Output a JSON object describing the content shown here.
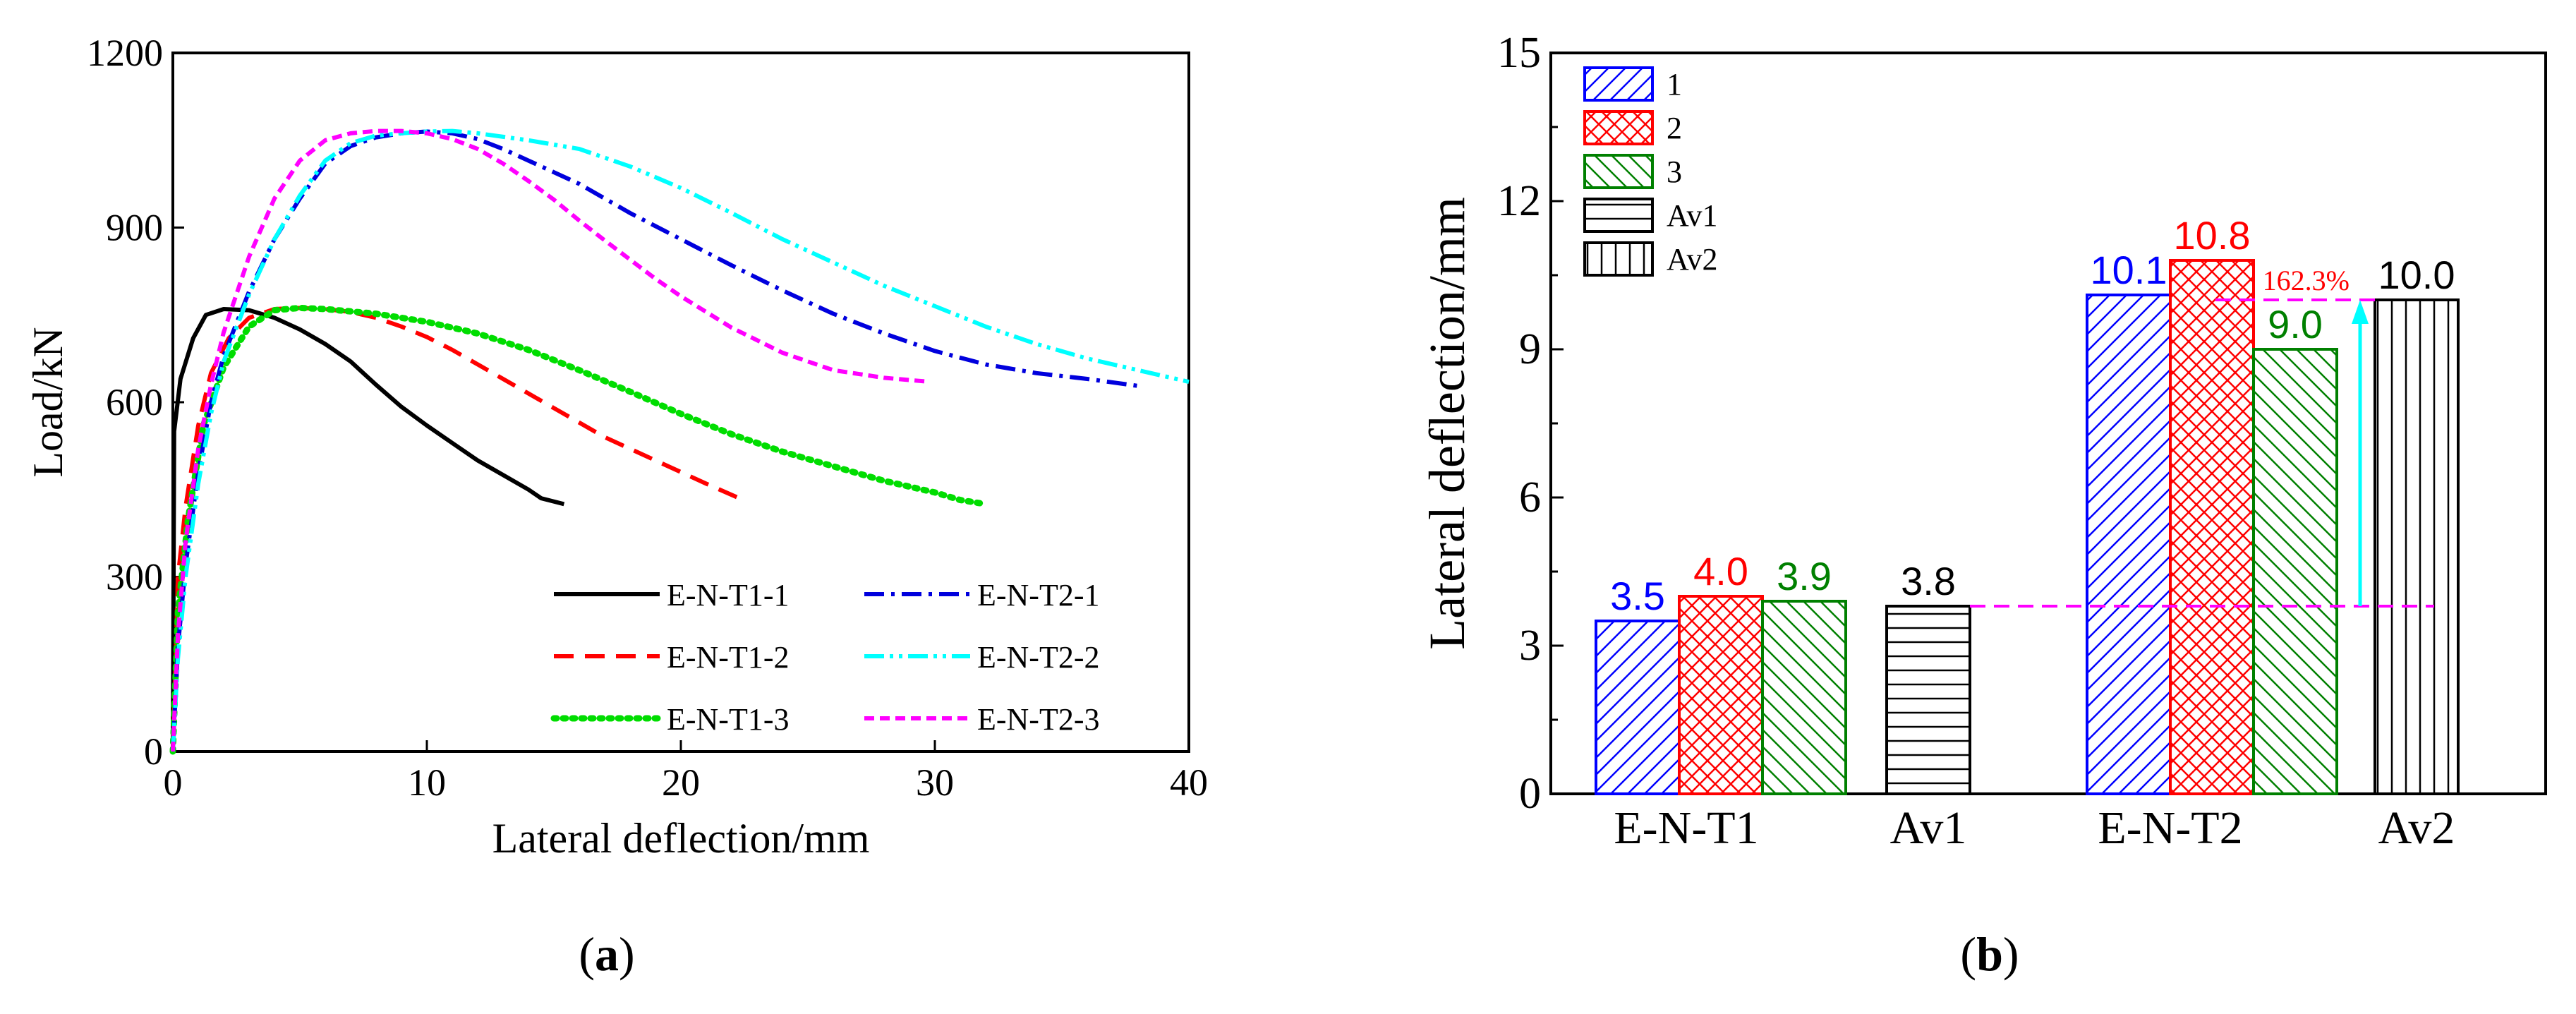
{
  "colors": {
    "black": "#000000",
    "red": "#ff0000",
    "blue": "#0000ff",
    "green": "#008000",
    "cyan": "#00ffff",
    "magenta": "#ff00ff",
    "dash_blue": "#0000dd",
    "dot_green": "#00dd00"
  },
  "panels": {
    "a_label": "a",
    "b_label": "b"
  },
  "chart_data": [
    {
      "type": "line",
      "xlabel": "Lateral deflection/mm",
      "ylabel": "Load/kN",
      "xlim": [
        0,
        40
      ],
      "ylim": [
        0,
        1200
      ],
      "xticks": [
        0,
        10,
        20,
        30,
        40
      ],
      "yticks": [
        0,
        300,
        600,
        900,
        1200
      ],
      "grid": false,
      "legend_position": "bottom-right",
      "series": [
        {
          "name": "E-N-T1-1",
          "color": "#000000",
          "style": "solid",
          "points": [
            [
              0,
              0
            ],
            [
              0.05,
              550
            ],
            [
              0.3,
              640
            ],
            [
              0.8,
              710
            ],
            [
              1.3,
              750
            ],
            [
              2,
              760
            ],
            [
              3,
              758
            ],
            [
              4,
              745
            ],
            [
              5,
              725
            ],
            [
              6,
              700
            ],
            [
              7,
              670
            ],
            [
              8,
              630
            ],
            [
              9,
              592
            ],
            [
              10,
              560
            ],
            [
              11,
              530
            ],
            [
              12,
              500
            ],
            [
              13,
              475
            ],
            [
              14,
              450
            ],
            [
              14.5,
              435
            ],
            [
              15.4,
              425
            ]
          ]
        },
        {
          "name": "E-N-T1-2",
          "color": "#ff0000",
          "style": "dashed",
          "points": [
            [
              0,
              0
            ],
            [
              0.2,
              300
            ],
            [
              0.5,
              420
            ],
            [
              1,
              560
            ],
            [
              1.5,
              650
            ],
            [
              2.2,
              710
            ],
            [
              3,
              745
            ],
            [
              4,
              760
            ],
            [
              5,
              762
            ],
            [
              6,
              760
            ],
            [
              7,
              755
            ],
            [
              8,
              745
            ],
            [
              9,
              730
            ],
            [
              10,
              712
            ],
            [
              11,
              690
            ],
            [
              12,
              665
            ],
            [
              13,
              640
            ],
            [
              14,
              615
            ],
            [
              15,
              590
            ],
            [
              16,
              565
            ],
            [
              17,
              540
            ],
            [
              18,
              520
            ],
            [
              19,
              500
            ],
            [
              20,
              480
            ],
            [
              21,
              460
            ],
            [
              22.3,
              435
            ]
          ]
        },
        {
          "name": "E-N-T1-3",
          "color": "#00dd00",
          "style": "dotted",
          "points": [
            [
              0,
              0
            ],
            [
              0.2,
              240
            ],
            [
              0.6,
              400
            ],
            [
              1.2,
              560
            ],
            [
              2,
              660
            ],
            [
              3,
              730
            ],
            [
              4,
              758
            ],
            [
              5,
              762
            ],
            [
              6,
              760
            ],
            [
              8,
              752
            ],
            [
              10,
              738
            ],
            [
              12,
              718
            ],
            [
              14,
              690
            ],
            [
              16,
              655
            ],
            [
              18,
              618
            ],
            [
              20,
              580
            ],
            [
              22,
              545
            ],
            [
              24,
              515
            ],
            [
              26,
              490
            ],
            [
              28,
              465
            ],
            [
              30,
              445
            ],
            [
              31,
              432
            ],
            [
              32,
              425
            ]
          ]
        },
        {
          "name": "E-N-T2-1",
          "color": "#0000dd",
          "style": "dash-dot",
          "points": [
            [
              0,
              0
            ],
            [
              0.2,
              180
            ],
            [
              0.5,
              320
            ],
            [
              1,
              480
            ],
            [
              1.5,
              600
            ],
            [
              2,
              680
            ],
            [
              3,
              790
            ],
            [
              4,
              880
            ],
            [
              5,
              950
            ],
            [
              6,
              1010
            ],
            [
              7,
              1040
            ],
            [
              8,
              1055
            ],
            [
              9,
              1062
            ],
            [
              10,
              1065
            ],
            [
              11,
              1062
            ],
            [
              12,
              1052
            ],
            [
              13,
              1035
            ],
            [
              14,
              1015
            ],
            [
              16,
              975
            ],
            [
              18,
              925
            ],
            [
              20,
              880
            ],
            [
              22,
              835
            ],
            [
              24,
              792
            ],
            [
              26,
              752
            ],
            [
              28,
              718
            ],
            [
              30,
              688
            ],
            [
              32,
              665
            ],
            [
              34,
              650
            ],
            [
              36,
              640
            ],
            [
              38,
              628
            ]
          ]
        },
        {
          "name": "E-N-T2-2",
          "color": "#00ffff",
          "style": "dash-dot-dot",
          "points": [
            [
              0,
              0
            ],
            [
              0.2,
              160
            ],
            [
              0.5,
              300
            ],
            [
              1,
              460
            ],
            [
              1.5,
              580
            ],
            [
              2,
              670
            ],
            [
              3,
              785
            ],
            [
              4,
              880
            ],
            [
              5,
              955
            ],
            [
              6,
              1015
            ],
            [
              7,
              1045
            ],
            [
              8,
              1058
            ],
            [
              9,
              1062
            ],
            [
              10,
              1065
            ],
            [
              11,
              1066
            ],
            [
              12,
              1062
            ],
            [
              14,
              1050
            ],
            [
              16,
              1035
            ],
            [
              18,
              1005
            ],
            [
              20,
              968
            ],
            [
              22,
              925
            ],
            [
              24,
              880
            ],
            [
              26,
              840
            ],
            [
              28,
              800
            ],
            [
              30,
              765
            ],
            [
              32,
              730
            ],
            [
              34,
              700
            ],
            [
              36,
              675
            ],
            [
              38,
              655
            ],
            [
              40,
              635
            ]
          ]
        },
        {
          "name": "E-N-T2-3",
          "color": "#ff00ff",
          "style": "short-dashed",
          "points": [
            [
              0,
              0
            ],
            [
              0.2,
              200
            ],
            [
              0.5,
              360
            ],
            [
              1,
              520
            ],
            [
              1.5,
              630
            ],
            [
              2,
              720
            ],
            [
              3,
              850
            ],
            [
              4,
              950
            ],
            [
              5,
              1015
            ],
            [
              6,
              1050
            ],
            [
              7,
              1062
            ],
            [
              8,
              1066
            ],
            [
              9,
              1066
            ],
            [
              10,
              1062
            ],
            [
              11,
              1052
            ],
            [
              12,
              1035
            ],
            [
              13,
              1010
            ],
            [
              14,
              980
            ],
            [
              15,
              948
            ],
            [
              16,
              912
            ],
            [
              17,
              878
            ],
            [
              18,
              845
            ],
            [
              19,
              812
            ],
            [
              20,
              782
            ],
            [
              22,
              728
            ],
            [
              24,
              685
            ],
            [
              26,
              655
            ],
            [
              28,
              642
            ],
            [
              29.8,
              635
            ]
          ]
        }
      ]
    },
    {
      "type": "bar",
      "ylabel": "Lateral deflection/mm",
      "ylim": [
        0,
        15
      ],
      "yticks": [
        0,
        3,
        6,
        9,
        12,
        15
      ],
      "grid": false,
      "legend_position": "top-left",
      "categories": [
        "E-N-T1",
        "Av1",
        "E-N-T2",
        "Av2"
      ],
      "legend": [
        {
          "name": "1",
          "color": "#0000ff",
          "pattern": "diagonal"
        },
        {
          "name": "2",
          "color": "#ff0000",
          "pattern": "crosshatch"
        },
        {
          "name": "3",
          "color": "#008000",
          "pattern": "back-diagonal"
        },
        {
          "name": "Av1",
          "color": "#000000",
          "pattern": "horizontal"
        },
        {
          "name": "Av2",
          "color": "#000000",
          "pattern": "vertical"
        }
      ],
      "bars": [
        {
          "category": "E-N-T1",
          "series": "1",
          "value": 3.5,
          "label": "3.5",
          "color": "#0000ff",
          "pattern": "diagonal"
        },
        {
          "category": "E-N-T1",
          "series": "2",
          "value": 4.0,
          "label": "4.0",
          "color": "#ff0000",
          "pattern": "crosshatch"
        },
        {
          "category": "E-N-T1",
          "series": "3",
          "value": 3.9,
          "label": "3.9",
          "color": "#008000",
          "pattern": "back-diagonal"
        },
        {
          "category": "Av1",
          "series": "Av1",
          "value": 3.8,
          "label": "3.8",
          "color": "#000000",
          "pattern": "horizontal"
        },
        {
          "category": "E-N-T2",
          "series": "1",
          "value": 10.1,
          "label": "10.1",
          "color": "#0000ff",
          "pattern": "diagonal"
        },
        {
          "category": "E-N-T2",
          "series": "2",
          "value": 10.8,
          "label": "10.8",
          "color": "#ff0000",
          "pattern": "crosshatch"
        },
        {
          "category": "E-N-T2",
          "series": "3",
          "value": 9.0,
          "label": "9.0",
          "color": "#008000",
          "pattern": "back-diagonal"
        },
        {
          "category": "Av2",
          "series": "Av2",
          "value": 10.0,
          "label": "10.0",
          "color": "#000000",
          "pattern": "vertical"
        }
      ],
      "annotations": [
        {
          "text": "162.3%",
          "color": "#ff0000",
          "from_value": 3.8,
          "to_value": 10.0,
          "arrow_color": "#00ffff",
          "line_color": "#ff00ff"
        }
      ]
    }
  ]
}
